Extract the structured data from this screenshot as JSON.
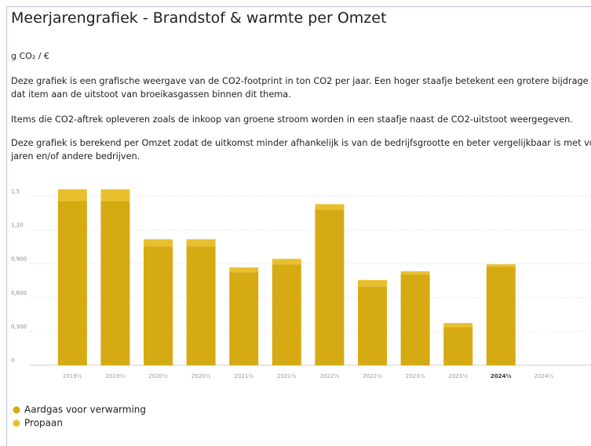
{
  "header": {
    "title": "Meerjarengrafiek - Brandstof & warmte per Omzet",
    "unit": "g CO₂ / €"
  },
  "paragraphs": [
    "Deze grafiek is een grafische weergave van de CO2-footprint in ton CO2 per jaar. Een hoger staafje betekent een grotere bijdrage van dat item aan de uitstoot van broeikasgassen binnen dit thema.",
    "Items die CO2-aftrek opleveren zoals de inkoop van groene stroom worden in een staafje naast de CO2-uitstoot weergegeven.",
    "Deze grafiek is berekend per Omzet zodat de uitkomst minder afhankelijk is van de bedrijfsgrootte en beter vergelijkbaar is met vorige jaren en/of andere bedrijven."
  ],
  "chart_data": {
    "type": "stacked_bar",
    "categories": [
      "2019½",
      "2019½",
      "2020½",
      "2020½",
      "2021½",
      "2021½",
      "2022½",
      "2022½",
      "2023½",
      "2023½",
      "2024½",
      "2024½"
    ],
    "highlight_category": 10,
    "series": [
      {
        "name": "Aardgas voor verwarming",
        "color": "#d6aa12",
        "values": [
          1.458,
          1.458,
          1.056,
          1.056,
          0.826,
          0.896,
          1.382,
          0.701,
          0.806,
          0.34,
          0.875,
          null
        ]
      },
      {
        "name": "Propaan",
        "color": "#e8c02e",
        "values": [
          0.104,
          0.104,
          0.062,
          0.062,
          0.042,
          0.048,
          0.048,
          0.056,
          0.028,
          0.035,
          0.021,
          null
        ]
      }
    ],
    "ylim": [
      0,
      1.6
    ],
    "yticks": [
      0,
      {
        "value": 0.3,
        "label": "0,300"
      },
      {
        "value": 0.6,
        "label": "0,600"
      },
      {
        "value": 0.9,
        "label": "0,900"
      },
      {
        "value": 1.2,
        "label": "1,20"
      },
      {
        "value": 1.5,
        "label": "1,5"
      }
    ],
    "grid": true
  }
}
